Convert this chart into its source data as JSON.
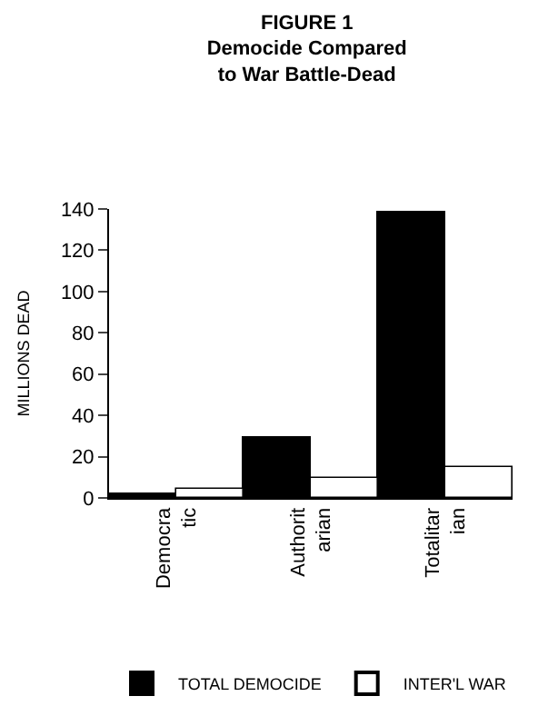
{
  "chart_data": {
    "type": "bar",
    "title": "FIGURE 1\nDemocide Compared\nto War Battle-Dead",
    "ylabel": "MILLIONS DEAD",
    "categories": [
      "Democra\ntic",
      "Authorit\narian",
      "Totalitar\nian"
    ],
    "series": [
      {
        "name": "TOTAL DEMOCIDE",
        "color": "#000000",
        "values": [
          2,
          29,
          138
        ]
      },
      {
        "name": "INTER'L WAR",
        "color": "#ffffff",
        "values": [
          4,
          10,
          15
        ]
      }
    ],
    "ylim": [
      0,
      140
    ],
    "yticks": [
      0,
      20,
      40,
      60,
      80,
      100,
      120,
      140
    ],
    "legend": "bottom"
  }
}
